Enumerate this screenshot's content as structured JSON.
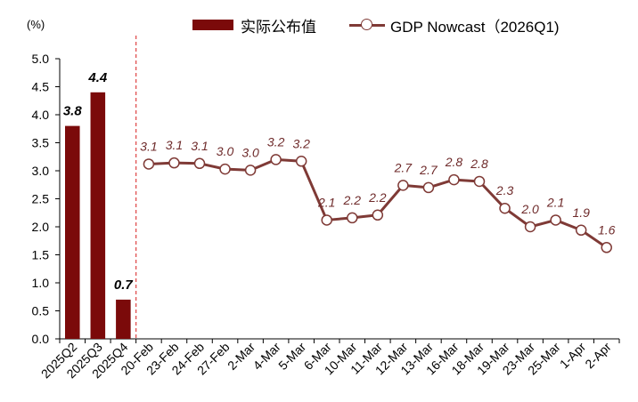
{
  "unit_label": "(%)",
  "legend": {
    "bar_label": "实际公布值",
    "line_label": "GDP Nowcast（2026Q1)"
  },
  "colors": {
    "bar": "#7B0A0A",
    "line": "#7F3A36",
    "line_label": "#6E2A2A",
    "divider": "#E05050"
  },
  "chart_data": {
    "type": "bar+line",
    "ylim": [
      0,
      5
    ],
    "yticks": [
      "0.0",
      "0.5",
      "1.0",
      "1.5",
      "2.0",
      "2.5",
      "3.0",
      "3.5",
      "4.0",
      "4.5",
      "5.0"
    ],
    "grid": false,
    "legend_position": "top",
    "bars": {
      "name": "实际公布值",
      "categories": [
        "2025Q2",
        "2025Q3",
        "2025Q4"
      ],
      "values": [
        3.8,
        4.4,
        0.7
      ],
      "labels": [
        "3.8",
        "4.4",
        "0.7"
      ]
    },
    "line": {
      "name": "GDP Nowcast（2026Q1)",
      "categories": [
        "20-Feb",
        "23-Feb",
        "24-Feb",
        "27-Feb",
        "2-Mar",
        "4-Mar",
        "5-Mar",
        "6-Mar",
        "10-Mar",
        "11-Mar",
        "12-Mar",
        "13-Mar",
        "16-Mar",
        "18-Mar",
        "19-Mar",
        "23-Mar",
        "25-Mar",
        "1-Apr",
        "2-Apr"
      ],
      "values": [
        3.12,
        3.14,
        3.13,
        3.03,
        3.01,
        3.2,
        3.17,
        2.12,
        2.16,
        2.21,
        2.74,
        2.7,
        2.84,
        2.81,
        2.33,
        2.0,
        2.12,
        1.94,
        1.63
      ],
      "labels": [
        "3.1",
        "3.1",
        "3.1",
        "3.0",
        "3.0",
        "3.2",
        "3.2",
        "2.1",
        "2.2",
        "2.2",
        "2.7",
        "2.7",
        "2.8",
        "2.8",
        "2.3",
        "2.0",
        "2.1",
        "1.9",
        "1.6"
      ]
    }
  }
}
